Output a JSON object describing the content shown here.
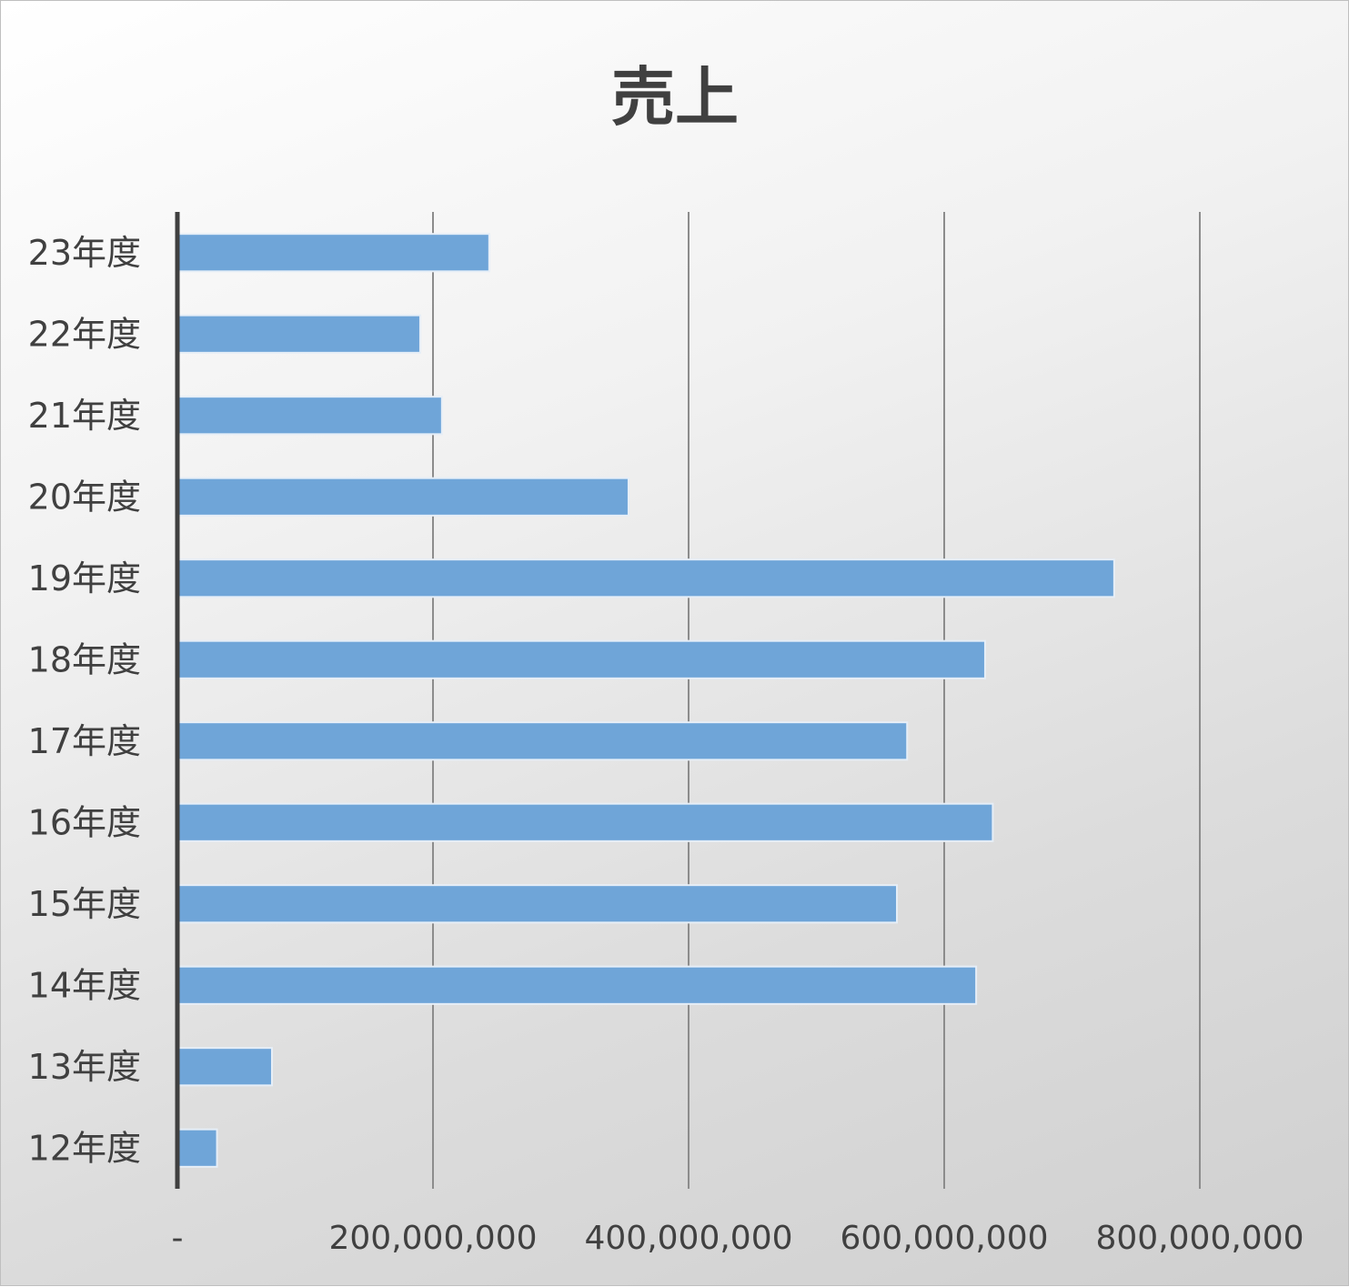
{
  "chart_data": {
    "type": "bar",
    "orientation": "horizontal",
    "title": "売上",
    "categories": [
      "23年度",
      "22年度",
      "21年度",
      "20年度",
      "19年度",
      "18年度",
      "17年度",
      "16年度",
      "15年度",
      "14年度",
      "13年度",
      "12年度"
    ],
    "values": [
      244000000,
      190000000,
      207000000,
      353000000,
      733000000,
      632000000,
      571000000,
      638000000,
      563000000,
      625000000,
      74000000,
      31000000
    ],
    "x_ticks": [
      0,
      200000000,
      400000000,
      600000000,
      800000000
    ],
    "x_tick_labels": [
      "-",
      "200,000,000",
      "400,000,000",
      "600,000,000",
      "800,000,000"
    ],
    "xlim": [
      0,
      800000000
    ],
    "grid": "vertical",
    "legend": "none",
    "bar_color": "#6fa5d8"
  }
}
